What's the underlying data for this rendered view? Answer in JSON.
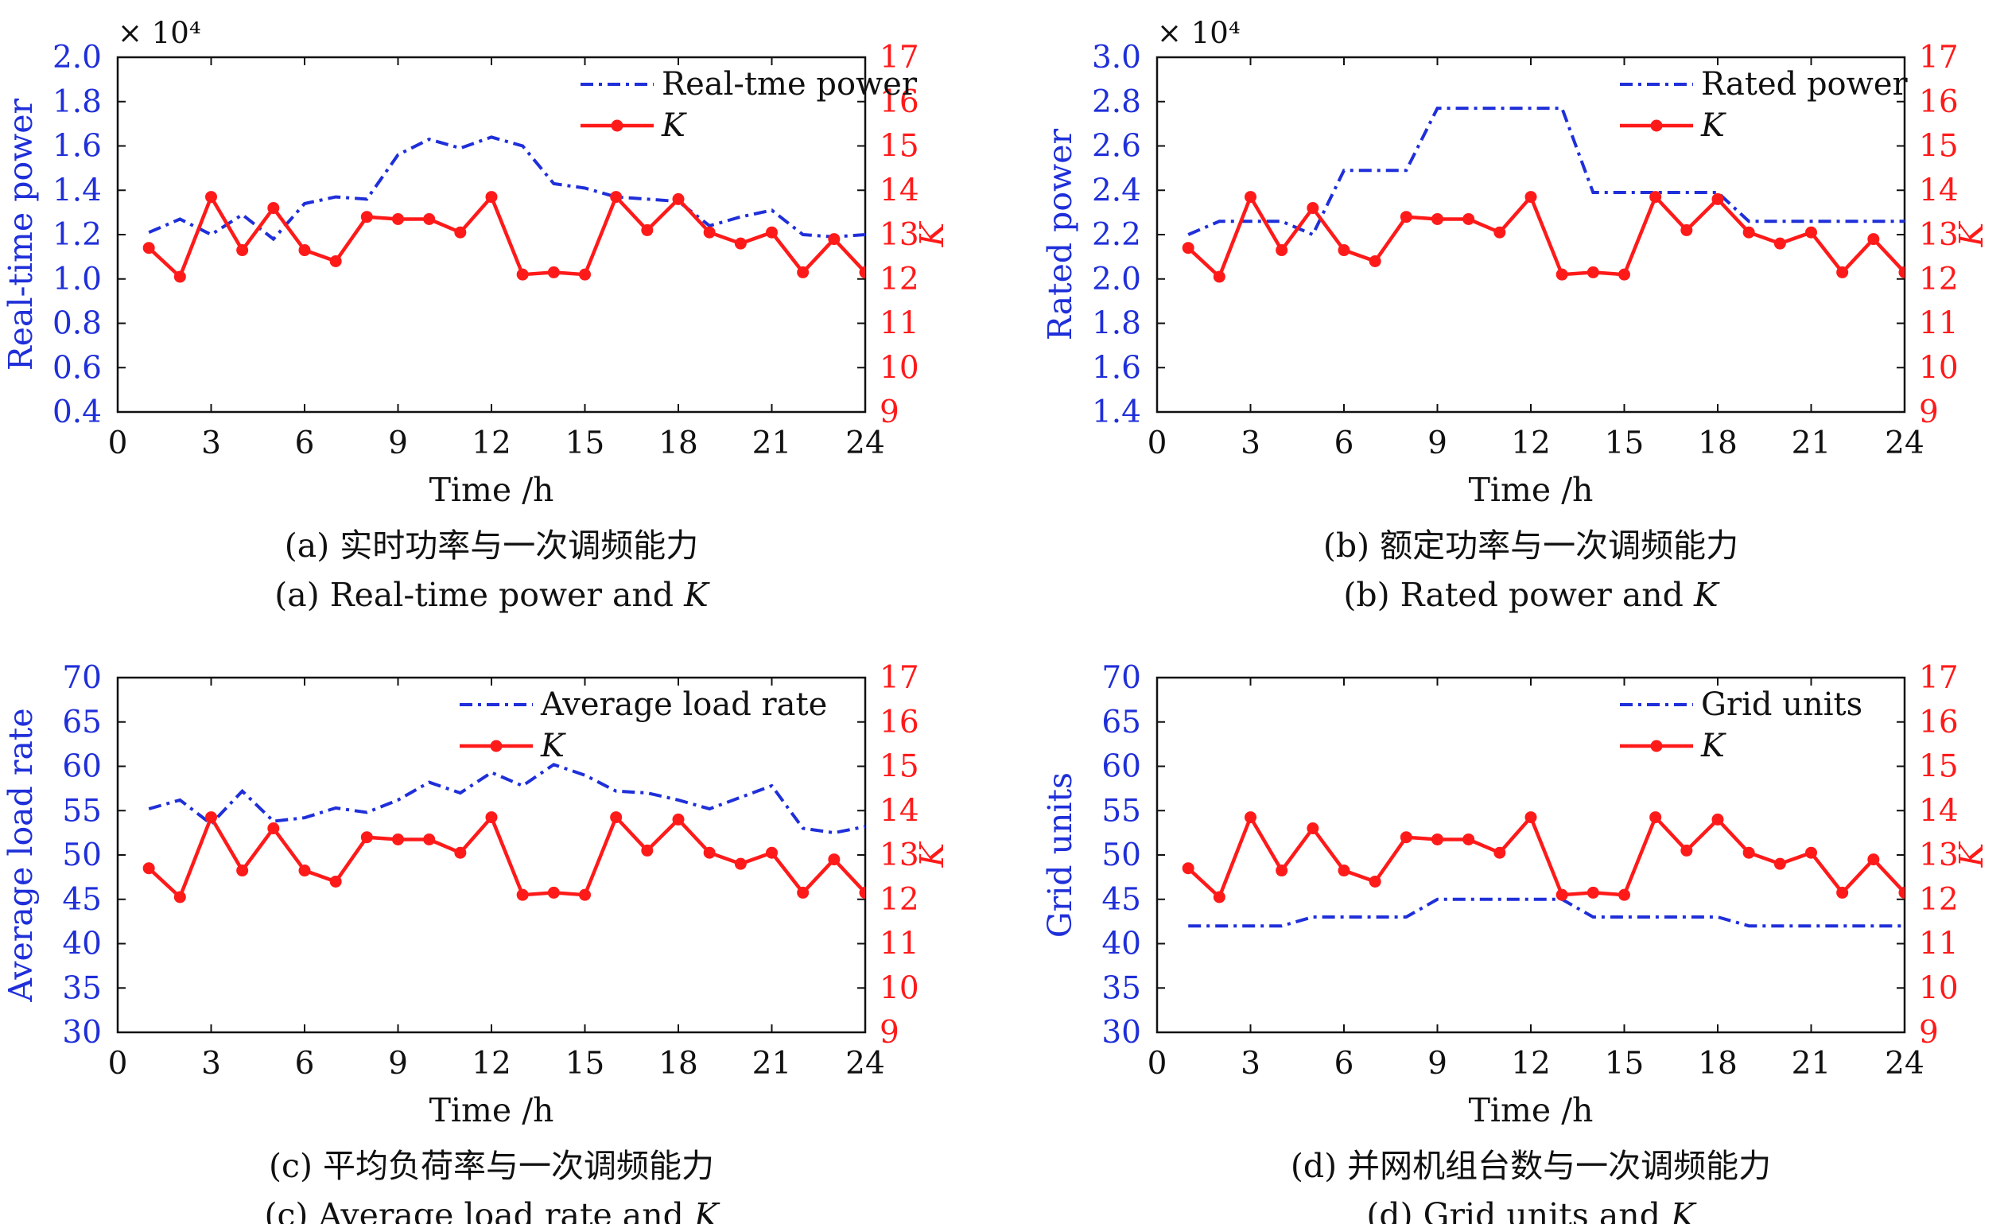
{
  "chart_data": [
    {
      "type": "line",
      "caption_cn": "(a) 实时功率与一次调频能力",
      "caption_en": "(a) Real-time power and ",
      "caption_var": "K",
      "xlabel": "Time /h",
      "ylabel_left": "Real-time power",
      "ylabel_right": "K",
      "left_multiplier": "× 10⁴",
      "xlim": [
        0,
        24
      ],
      "xticks": [
        "0",
        "3",
        "6",
        "9",
        "12",
        "15",
        "18",
        "21",
        "24"
      ],
      "ylim_left": [
        0.4,
        2.0
      ],
      "yticks_left": [
        "0.4",
        "0.6",
        "0.8",
        "1.0",
        "1.2",
        "1.4",
        "1.6",
        "1.8",
        "2.0"
      ],
      "ylim_right": [
        9,
        17
      ],
      "yticks_right": [
        "9",
        "10",
        "11",
        "12",
        "13",
        "14",
        "15",
        "16",
        "17"
      ],
      "legend": [
        "Real-tme power",
        "K"
      ],
      "series": [
        {
          "name": "Real-tme power",
          "axis": "left",
          "style": "dashdot",
          "color": "#1f2fd9",
          "x": [
            1,
            2,
            3,
            4,
            5,
            6,
            7,
            8,
            9,
            10,
            11,
            12,
            13,
            14,
            15,
            16,
            17,
            18,
            19,
            20,
            21,
            22,
            23,
            24
          ],
          "y": [
            1.21,
            1.27,
            1.2,
            1.29,
            1.18,
            1.34,
            1.37,
            1.36,
            1.56,
            1.63,
            1.59,
            1.64,
            1.6,
            1.43,
            1.41,
            1.37,
            1.36,
            1.35,
            1.24,
            1.28,
            1.31,
            1.2,
            1.19,
            1.2
          ]
        },
        {
          "name": "K",
          "axis": "right",
          "style": "solid-marker",
          "color": "#ff1a1a",
          "x": [
            1,
            2,
            3,
            4,
            5,
            6,
            7,
            8,
            9,
            10,
            11,
            12,
            13,
            14,
            15,
            16,
            17,
            18,
            19,
            20,
            21,
            22,
            23,
            24
          ],
          "y": [
            12.7,
            12.05,
            13.85,
            12.65,
            13.6,
            12.65,
            12.4,
            13.4,
            13.35,
            13.35,
            13.05,
            13.85,
            12.1,
            12.15,
            12.1,
            13.85,
            13.1,
            13.8,
            13.05,
            12.8,
            13.05,
            12.15,
            12.9,
            12.15
          ]
        }
      ]
    },
    {
      "type": "line",
      "caption_cn": "(b) 额定功率与一次调频能力",
      "caption_en": "(b) Rated power and ",
      "caption_var": "K",
      "xlabel": "Time /h",
      "ylabel_left": "Rated power",
      "ylabel_right": "K",
      "left_multiplier": "× 10⁴",
      "xlim": [
        0,
        24
      ],
      "xticks": [
        "0",
        "3",
        "6",
        "9",
        "12",
        "15",
        "18",
        "21",
        "24"
      ],
      "ylim_left": [
        1.4,
        3.0
      ],
      "yticks_left": [
        "1.4",
        "1.6",
        "1.8",
        "2.0",
        "2.2",
        "2.4",
        "2.6",
        "2.8",
        "3.0"
      ],
      "ylim_right": [
        9,
        17
      ],
      "yticks_right": [
        "9",
        "10",
        "11",
        "12",
        "13",
        "14",
        "15",
        "16",
        "17"
      ],
      "legend": [
        "Rated power",
        "K"
      ],
      "series": [
        {
          "name": "Rated power",
          "axis": "left",
          "style": "dashdot",
          "color": "#1f2fd9",
          "x": [
            1,
            2,
            3,
            4,
            5,
            6,
            7,
            8,
            9,
            10,
            11,
            12,
            13,
            14,
            15,
            16,
            17,
            18,
            19,
            20,
            21,
            22,
            23,
            24
          ],
          "y": [
            2.2,
            2.26,
            2.26,
            2.26,
            2.2,
            2.49,
            2.49,
            2.49,
            2.77,
            2.77,
            2.77,
            2.77,
            2.77,
            2.39,
            2.39,
            2.39,
            2.39,
            2.39,
            2.26,
            2.26,
            2.26,
            2.26,
            2.26,
            2.26
          ]
        },
        {
          "name": "K",
          "axis": "right",
          "style": "solid-marker",
          "color": "#ff1a1a",
          "x": [
            1,
            2,
            3,
            4,
            5,
            6,
            7,
            8,
            9,
            10,
            11,
            12,
            13,
            14,
            15,
            16,
            17,
            18,
            19,
            20,
            21,
            22,
            23,
            24
          ],
          "y": [
            12.7,
            12.05,
            13.85,
            12.65,
            13.6,
            12.65,
            12.4,
            13.4,
            13.35,
            13.35,
            13.05,
            13.85,
            12.1,
            12.15,
            12.1,
            13.85,
            13.1,
            13.8,
            13.05,
            12.8,
            13.05,
            12.15,
            12.9,
            12.15
          ]
        }
      ]
    },
    {
      "type": "line",
      "caption_cn": "(c) 平均负荷率与一次调频能力",
      "caption_en": "(c) Average load rate and ",
      "caption_var": "K",
      "xlabel": "Time /h",
      "ylabel_left": "Average load rate",
      "ylabel_right": "K",
      "left_multiplier": "",
      "xlim": [
        0,
        24
      ],
      "xticks": [
        "0",
        "3",
        "6",
        "9",
        "12",
        "15",
        "18",
        "21",
        "24"
      ],
      "ylim_left": [
        30,
        70
      ],
      "yticks_left": [
        "30",
        "35",
        "40",
        "45",
        "50",
        "55",
        "60",
        "65",
        "70"
      ],
      "ylim_right": [
        9,
        17
      ],
      "yticks_right": [
        "9",
        "10",
        "11",
        "12",
        "13",
        "14",
        "15",
        "16",
        "17"
      ],
      "legend": [
        "Average load rate",
        "K"
      ],
      "series": [
        {
          "name": "Average load rate",
          "axis": "left",
          "style": "dashdot",
          "color": "#1f2fd9",
          "x": [
            1,
            2,
            3,
            4,
            5,
            6,
            7,
            8,
            9,
            10,
            11,
            12,
            13,
            14,
            15,
            16,
            17,
            18,
            19,
            20,
            21,
            22,
            23,
            24
          ],
          "y": [
            55.2,
            56.2,
            53.5,
            57.2,
            53.8,
            54.2,
            55.3,
            54.8,
            56.2,
            58.2,
            57.0,
            59.3,
            57.8,
            60.2,
            59.0,
            57.2,
            57.0,
            56.2,
            55.2,
            56.5,
            57.8,
            53.0,
            52.5,
            53.2
          ]
        },
        {
          "name": "K",
          "axis": "right",
          "style": "solid-marker",
          "color": "#ff1a1a",
          "x": [
            1,
            2,
            3,
            4,
            5,
            6,
            7,
            8,
            9,
            10,
            11,
            12,
            13,
            14,
            15,
            16,
            17,
            18,
            19,
            20,
            21,
            22,
            23,
            24
          ],
          "y": [
            12.7,
            12.05,
            13.85,
            12.65,
            13.6,
            12.65,
            12.4,
            13.4,
            13.35,
            13.35,
            13.05,
            13.85,
            12.1,
            12.15,
            12.1,
            13.85,
            13.1,
            13.8,
            13.05,
            12.8,
            13.05,
            12.15,
            12.9,
            12.15
          ]
        }
      ]
    },
    {
      "type": "line",
      "caption_cn": "(d) 并网机组台数与一次调频能力",
      "caption_en": "(d) Grid units and ",
      "caption_var": "K",
      "xlabel": "Time /h",
      "ylabel_left": "Grid units",
      "ylabel_right": "K",
      "left_multiplier": "",
      "xlim": [
        0,
        24
      ],
      "xticks": [
        "0",
        "3",
        "6",
        "9",
        "12",
        "15",
        "18",
        "21",
        "24"
      ],
      "ylim_left": [
        30,
        70
      ],
      "yticks_left": [
        "30",
        "35",
        "40",
        "45",
        "50",
        "55",
        "60",
        "65",
        "70"
      ],
      "ylim_right": [
        9,
        17
      ],
      "yticks_right": [
        "9",
        "10",
        "11",
        "12",
        "13",
        "14",
        "15",
        "16",
        "17"
      ],
      "legend": [
        "Grid units",
        "K"
      ],
      "series": [
        {
          "name": "Grid units",
          "axis": "left",
          "style": "dashdot",
          "color": "#1f2fd9",
          "x": [
            1,
            2,
            3,
            4,
            5,
            6,
            7,
            8,
            9,
            10,
            11,
            12,
            13,
            14,
            15,
            16,
            17,
            18,
            19,
            20,
            21,
            22,
            23,
            24
          ],
          "y": [
            42,
            42,
            42,
            42,
            43,
            43,
            43,
            43,
            45,
            45,
            45,
            45,
            45,
            43,
            43,
            43,
            43,
            43,
            42,
            42,
            42,
            42,
            42,
            42
          ]
        },
        {
          "name": "K",
          "axis": "right",
          "style": "solid-marker",
          "color": "#ff1a1a",
          "x": [
            1,
            2,
            3,
            4,
            5,
            6,
            7,
            8,
            9,
            10,
            11,
            12,
            13,
            14,
            15,
            16,
            17,
            18,
            19,
            20,
            21,
            22,
            23,
            24
          ],
          "y": [
            12.7,
            12.05,
            13.85,
            12.65,
            13.6,
            12.65,
            12.4,
            13.4,
            13.35,
            13.35,
            13.05,
            13.85,
            12.1,
            12.15,
            12.1,
            13.85,
            13.1,
            13.8,
            13.05,
            12.8,
            13.05,
            12.15,
            12.9,
            12.15
          ]
        }
      ]
    }
  ]
}
